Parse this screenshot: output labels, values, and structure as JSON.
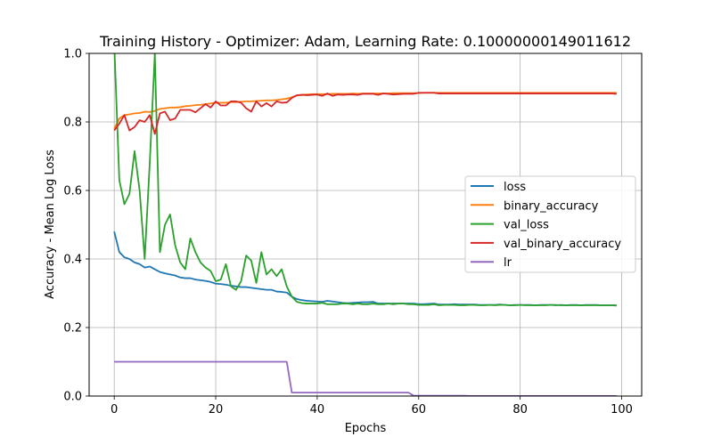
{
  "chart_data": {
    "type": "line",
    "title": "Training History - Optimizer: Adam, Learning Rate: 0.10000000149011612",
    "xlabel": "Epochs",
    "ylabel": "Accuracy - Mean Log Loss",
    "xlim": [
      -4.95,
      103.95
    ],
    "ylim": [
      0,
      1
    ],
    "xticks": [
      0,
      20,
      40,
      60,
      80,
      100
    ],
    "yticks": [
      0.0,
      0.2,
      0.4,
      0.6,
      0.8,
      1.0
    ],
    "xtick_labels": [
      "0",
      "20",
      "40",
      "60",
      "80",
      "100"
    ],
    "ytick_labels": [
      "0.0",
      "0.2",
      "0.4",
      "0.6",
      "0.8",
      "1.0"
    ],
    "grid": true,
    "legend_position": "center-right",
    "series": [
      {
        "name": "loss",
        "color": "#1f77b4",
        "values": [
          0.48,
          0.42,
          0.405,
          0.4,
          0.39,
          0.385,
          0.375,
          0.378,
          0.37,
          0.362,
          0.358,
          0.355,
          0.352,
          0.346,
          0.344,
          0.344,
          0.34,
          0.338,
          0.336,
          0.333,
          0.328,
          0.327,
          0.325,
          0.322,
          0.32,
          0.318,
          0.318,
          0.316,
          0.314,
          0.312,
          0.31,
          0.31,
          0.305,
          0.304,
          0.302,
          0.29,
          0.283,
          0.28,
          0.278,
          0.277,
          0.276,
          0.275,
          0.278,
          0.276,
          0.274,
          0.272,
          0.271,
          0.272,
          0.273,
          0.274,
          0.274,
          0.275,
          0.27,
          0.27,
          0.27,
          0.27,
          0.27,
          0.27,
          0.27,
          0.27,
          0.268,
          0.268,
          0.269,
          0.27,
          0.267,
          0.267,
          0.267,
          0.268,
          0.267,
          0.267,
          0.267,
          0.267,
          0.266,
          0.266,
          0.266,
          0.266,
          0.267,
          0.266,
          0.265,
          0.266,
          0.266,
          0.266,
          0.266,
          0.265,
          0.266,
          0.266,
          0.266,
          0.265,
          0.266,
          0.265,
          0.266,
          0.266,
          0.265,
          0.266,
          0.266,
          0.266,
          0.265,
          0.265,
          0.265,
          0.264
        ]
      },
      {
        "name": "binary_accuracy",
        "color": "#ff7f0e",
        "values": [
          0.78,
          0.81,
          0.82,
          0.822,
          0.825,
          0.826,
          0.83,
          0.829,
          0.832,
          0.838,
          0.84,
          0.842,
          0.842,
          0.843,
          0.846,
          0.847,
          0.849,
          0.85,
          0.852,
          0.854,
          0.856,
          0.856,
          0.856,
          0.858,
          0.858,
          0.859,
          0.86,
          0.86,
          0.861,
          0.862,
          0.863,
          0.863,
          0.864,
          0.866,
          0.868,
          0.872,
          0.877,
          0.879,
          0.88,
          0.881,
          0.881,
          0.881,
          0.881,
          0.882,
          0.882,
          0.882,
          0.882,
          0.883,
          0.882,
          0.883,
          0.883,
          0.883,
          0.883,
          0.883,
          0.883,
          0.884,
          0.884,
          0.884,
          0.884,
          0.884,
          0.884,
          0.885,
          0.885,
          0.885,
          0.885,
          0.885,
          0.885,
          0.885,
          0.885,
          0.885,
          0.885,
          0.885,
          0.885,
          0.885,
          0.885,
          0.885,
          0.885,
          0.885,
          0.885,
          0.885,
          0.885,
          0.885,
          0.885,
          0.885,
          0.885,
          0.885,
          0.885,
          0.885,
          0.885,
          0.885,
          0.885,
          0.885,
          0.885,
          0.885,
          0.885,
          0.885,
          0.885,
          0.885,
          0.885,
          0.885
        ]
      },
      {
        "name": "val_loss",
        "color": "#2ca02c",
        "values": [
          1.03,
          0.63,
          0.56,
          0.59,
          0.715,
          0.6,
          0.4,
          0.68,
          1.0,
          0.42,
          0.5,
          0.53,
          0.44,
          0.39,
          0.37,
          0.46,
          0.42,
          0.39,
          0.375,
          0.365,
          0.335,
          0.34,
          0.385,
          0.32,
          0.31,
          0.335,
          0.41,
          0.395,
          0.33,
          0.42,
          0.355,
          0.37,
          0.35,
          0.37,
          0.32,
          0.29,
          0.275,
          0.271,
          0.27,
          0.27,
          0.27,
          0.272,
          0.268,
          0.268,
          0.268,
          0.27,
          0.27,
          0.268,
          0.27,
          0.268,
          0.268,
          0.27,
          0.268,
          0.268,
          0.27,
          0.268,
          0.27,
          0.27,
          0.268,
          0.268,
          0.266,
          0.266,
          0.266,
          0.268,
          0.265,
          0.266,
          0.266,
          0.266,
          0.265,
          0.265,
          0.266,
          0.266,
          0.265,
          0.265,
          0.266,
          0.265,
          0.266,
          0.266,
          0.265,
          0.265,
          0.266,
          0.265,
          0.265,
          0.265,
          0.265,
          0.265,
          0.266,
          0.266,
          0.265,
          0.265,
          0.265,
          0.265,
          0.265,
          0.265,
          0.265,
          0.265,
          0.265,
          0.265,
          0.265,
          0.265
        ]
      },
      {
        "name": "val_binary_accuracy",
        "color": "#d62728",
        "values": [
          0.775,
          0.795,
          0.82,
          0.775,
          0.785,
          0.805,
          0.8,
          0.82,
          0.765,
          0.825,
          0.83,
          0.805,
          0.81,
          0.835,
          0.835,
          0.835,
          0.828,
          0.84,
          0.852,
          0.842,
          0.86,
          0.848,
          0.848,
          0.86,
          0.86,
          0.856,
          0.84,
          0.83,
          0.86,
          0.845,
          0.855,
          0.845,
          0.86,
          0.856,
          0.857,
          0.87,
          0.878,
          0.879,
          0.878,
          0.879,
          0.88,
          0.876,
          0.883,
          0.876,
          0.88,
          0.879,
          0.88,
          0.88,
          0.879,
          0.882,
          0.882,
          0.882,
          0.879,
          0.883,
          0.882,
          0.88,
          0.881,
          0.882,
          0.882,
          0.882,
          0.885,
          0.885,
          0.885,
          0.885,
          0.883,
          0.883,
          0.883,
          0.883,
          0.883,
          0.883,
          0.883,
          0.883,
          0.883,
          0.883,
          0.883,
          0.883,
          0.883,
          0.883,
          0.883,
          0.883,
          0.883,
          0.883,
          0.883,
          0.883,
          0.883,
          0.883,
          0.883,
          0.883,
          0.883,
          0.883,
          0.883,
          0.883,
          0.883,
          0.883,
          0.883,
          0.883,
          0.883,
          0.883,
          0.883,
          0.882
        ]
      },
      {
        "name": "lr",
        "color": "#9467bd",
        "values": [
          0.1,
          0.1,
          0.1,
          0.1,
          0.1,
          0.1,
          0.1,
          0.1,
          0.1,
          0.1,
          0.1,
          0.1,
          0.1,
          0.1,
          0.1,
          0.1,
          0.1,
          0.1,
          0.1,
          0.1,
          0.1,
          0.1,
          0.1,
          0.1,
          0.1,
          0.1,
          0.1,
          0.1,
          0.1,
          0.1,
          0.1,
          0.1,
          0.1,
          0.1,
          0.1,
          0.01,
          0.01,
          0.01,
          0.01,
          0.01,
          0.01,
          0.01,
          0.01,
          0.01,
          0.01,
          0.01,
          0.01,
          0.01,
          0.01,
          0.01,
          0.01,
          0.01,
          0.01,
          0.01,
          0.01,
          0.01,
          0.01,
          0.01,
          0.01,
          0.001,
          0.001,
          0.001,
          0.001,
          0.001,
          0.001,
          0.001,
          0.001,
          0.001,
          0.001,
          0.001,
          0.0001,
          0.0001,
          0.0001,
          0.0001,
          0.0001,
          0.0001,
          0.0001,
          0.0001,
          0.0001,
          0.0001,
          0.0001,
          0.0001,
          0.0001,
          0.0001,
          0.0001,
          0.0001,
          0.0001,
          0.0001,
          0.0001,
          0.0001,
          0.0001,
          0.0001,
          0.0001,
          0.0001,
          0.0001,
          0.0001,
          0.0001,
          0.0001,
          0.0001,
          0.0001
        ]
      }
    ]
  }
}
